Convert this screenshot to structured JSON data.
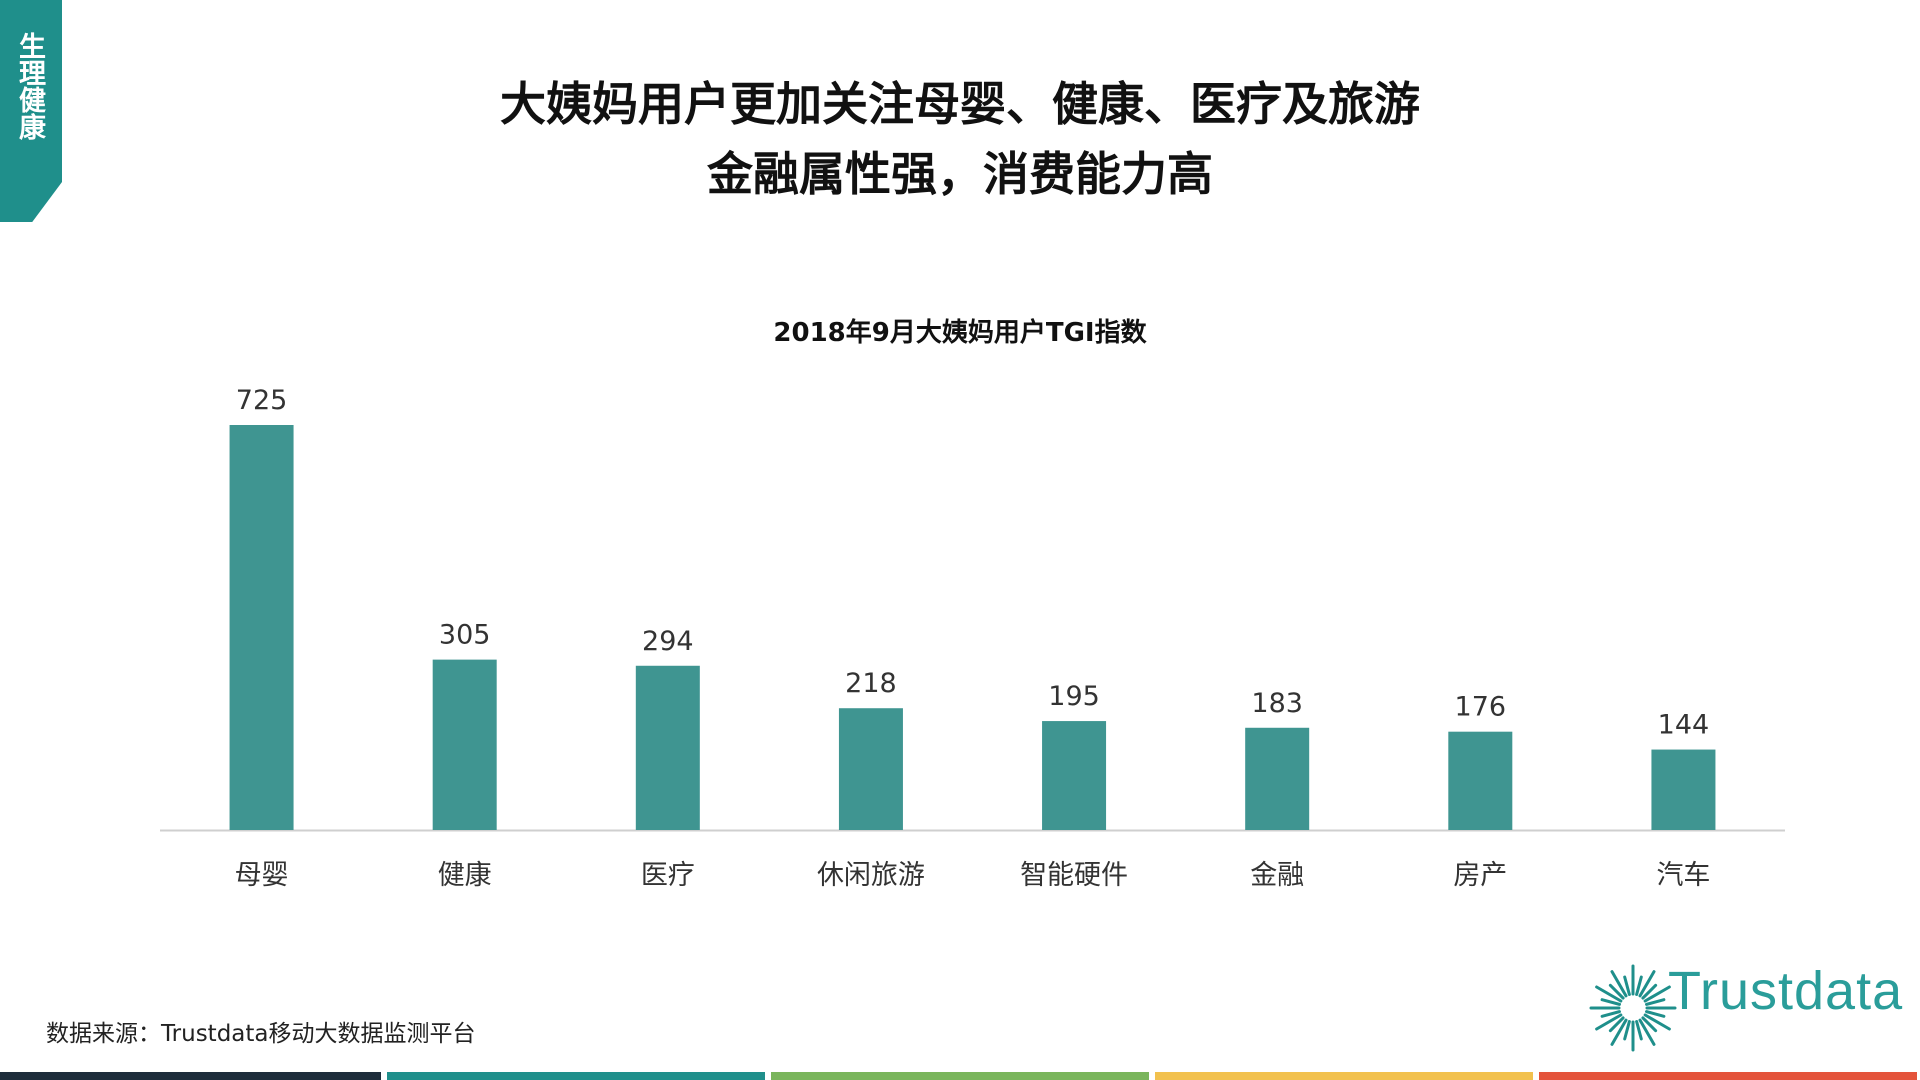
{
  "side_tab": {
    "label": "生理健康"
  },
  "header": {
    "title_line1": "大姨妈用户更加关注母婴、健康、医疗及旅游",
    "title_line2": "金融属性强，消费能力高"
  },
  "chart_data": {
    "type": "bar",
    "title": "2018年9月大姨妈用户TGI指数",
    "categories": [
      "母婴",
      "健康",
      "医疗",
      "休闲旅游",
      "智能硬件",
      "金融",
      "房产",
      "汽车"
    ],
    "values": [
      725,
      305,
      294,
      218,
      195,
      183,
      176,
      144
    ],
    "xlabel": "",
    "ylabel": "",
    "ylim": [
      0,
      800
    ],
    "grid": false,
    "bar_color": "#3f9591"
  },
  "footer": {
    "source": "数据来源：Trustdata移动大数据监测平台",
    "logo_text": "Trustdata"
  },
  "colors": {
    "accent": "#1f8f8b",
    "strip": [
      "#1e2d3b",
      "#1f8f8b",
      "#7ab55c",
      "#f2c14e",
      "#e4533b"
    ]
  }
}
